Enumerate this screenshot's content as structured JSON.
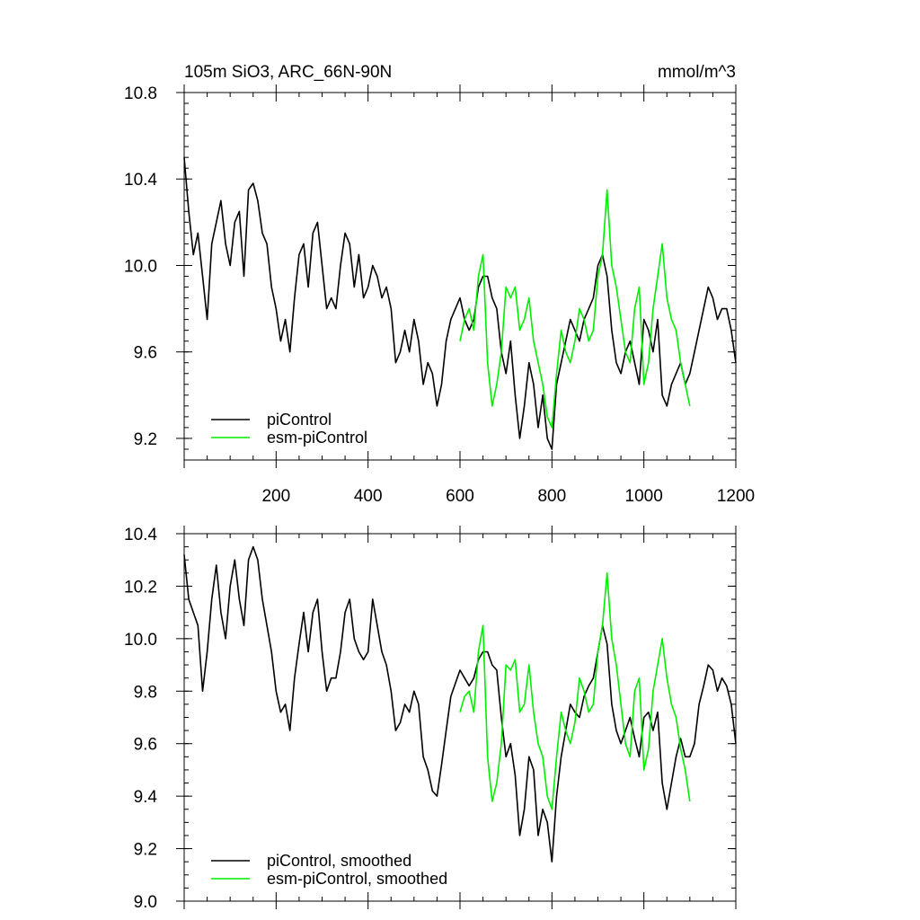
{
  "chart_data": [
    {
      "type": "line",
      "title": "105m SiO3, ARC_66N-90N",
      "units": "mmol/m^3",
      "ylim": [
        9.1,
        10.8
      ],
      "xlim": [
        0,
        1200
      ],
      "yticks": [
        "10.8",
        "10.4",
        "10.0",
        "9.6",
        "9.2"
      ],
      "xticks": [
        "200",
        "400",
        "600",
        "800",
        "1000",
        "1200"
      ],
      "legend_position": "bottom-left",
      "series": [
        {
          "name": "piControl",
          "color": "#000000",
          "x": [
            0,
            10,
            20,
            30,
            40,
            50,
            60,
            70,
            80,
            90,
            100,
            110,
            120,
            130,
            140,
            150,
            160,
            170,
            180,
            190,
            200,
            210,
            220,
            230,
            240,
            250,
            260,
            270,
            280,
            290,
            300,
            310,
            320,
            330,
            340,
            350,
            360,
            370,
            380,
            390,
            400,
            410,
            420,
            430,
            440,
            450,
            460,
            470,
            480,
            490,
            500,
            510,
            520,
            530,
            540,
            550,
            560,
            570,
            580,
            590,
            600,
            610,
            620,
            630,
            640,
            650,
            660,
            670,
            680,
            690,
            700,
            710,
            720,
            730,
            740,
            750,
            760,
            770,
            780,
            790,
            800,
            810,
            820,
            830,
            840,
            850,
            860,
            870,
            880,
            890,
            900,
            910,
            920,
            930,
            940,
            950,
            960,
            970,
            980,
            990,
            1000,
            1010,
            1020,
            1030,
            1040,
            1050,
            1060,
            1070,
            1080,
            1090,
            1100,
            1110,
            1120,
            1130,
            1140,
            1150,
            1160,
            1170,
            1180,
            1190,
            1200
          ],
          "y": [
            10.5,
            10.25,
            10.05,
            10.15,
            9.95,
            9.75,
            10.1,
            10.2,
            10.3,
            10.1,
            10.0,
            10.2,
            10.25,
            9.95,
            10.35,
            10.38,
            10.3,
            10.15,
            10.1,
            9.9,
            9.8,
            9.65,
            9.75,
            9.6,
            9.85,
            10.05,
            10.1,
            9.9,
            10.15,
            10.2,
            10.0,
            9.8,
            9.85,
            9.8,
            10.0,
            10.15,
            10.1,
            9.9,
            10.05,
            9.85,
            9.9,
            10.0,
            9.95,
            9.85,
            9.9,
            9.8,
            9.55,
            9.6,
            9.7,
            9.6,
            9.75,
            9.65,
            9.45,
            9.55,
            9.5,
            9.35,
            9.45,
            9.65,
            9.75,
            9.8,
            9.85,
            9.75,
            9.7,
            9.75,
            9.9,
            9.95,
            9.95,
            9.85,
            9.8,
            9.6,
            9.5,
            9.65,
            9.4,
            9.2,
            9.35,
            9.55,
            9.45,
            9.25,
            9.4,
            9.2,
            9.15,
            9.45,
            9.55,
            9.65,
            9.75,
            9.7,
            9.65,
            9.75,
            9.8,
            9.85,
            10.0,
            10.05,
            9.95,
            9.7,
            9.55,
            9.5,
            9.6,
            9.65,
            9.55,
            9.45,
            9.75,
            9.7,
            9.6,
            9.75,
            9.4,
            9.35,
            9.45,
            9.5,
            9.55,
            9.45,
            9.5,
            9.6,
            9.7,
            9.8,
            9.9,
            9.85,
            9.75,
            9.8,
            9.8,
            9.7,
            9.55
          ]
        },
        {
          "name": "esm-piControl",
          "color": "#00ee00",
          "x": [
            600,
            610,
            620,
            630,
            640,
            650,
            660,
            670,
            680,
            690,
            700,
            710,
            720,
            730,
            740,
            750,
            760,
            770,
            780,
            790,
            800,
            810,
            820,
            830,
            840,
            850,
            860,
            870,
            880,
            890,
            900,
            910,
            920,
            930,
            940,
            950,
            960,
            970,
            980,
            990,
            1000,
            1010,
            1020,
            1030,
            1040,
            1050,
            1060,
            1070,
            1080,
            1090,
            1100
          ],
          "y": [
            9.65,
            9.75,
            9.8,
            9.7,
            9.95,
            10.05,
            9.55,
            9.35,
            9.45,
            9.6,
            9.9,
            9.85,
            9.9,
            9.7,
            9.75,
            9.85,
            9.65,
            9.55,
            9.45,
            9.3,
            9.25,
            9.5,
            9.7,
            9.6,
            9.55,
            9.65,
            9.8,
            9.75,
            9.65,
            9.7,
            9.95,
            10.05,
            10.35,
            10.0,
            9.9,
            9.75,
            9.6,
            9.55,
            9.8,
            9.9,
            9.45,
            9.55,
            9.8,
            9.95,
            10.1,
            9.85,
            9.75,
            9.7,
            9.55,
            9.45,
            9.35
          ]
        }
      ]
    },
    {
      "type": "line",
      "ylim": [
        9.0,
        10.4
      ],
      "xlim": [
        0,
        1200
      ],
      "yticks": [
        "10.4",
        "10.2",
        "10.0",
        "9.8",
        "9.6",
        "9.4",
        "9.2",
        "9.0"
      ],
      "legend_position": "bottom-left",
      "series": [
        {
          "name": "piControl, smoothed",
          "color": "#000000",
          "x": [
            0,
            10,
            20,
            30,
            40,
            50,
            60,
            70,
            80,
            90,
            100,
            110,
            120,
            130,
            140,
            150,
            160,
            170,
            180,
            190,
            200,
            210,
            220,
            230,
            240,
            250,
            260,
            270,
            280,
            290,
            300,
            310,
            320,
            330,
            340,
            350,
            360,
            370,
            380,
            390,
            400,
            410,
            420,
            430,
            440,
            450,
            460,
            470,
            480,
            490,
            500,
            510,
            520,
            530,
            540,
            550,
            560,
            570,
            580,
            590,
            600,
            610,
            620,
            630,
            640,
            650,
            660,
            670,
            680,
            690,
            700,
            710,
            720,
            730,
            740,
            750,
            760,
            770,
            780,
            790,
            800,
            810,
            820,
            830,
            840,
            850,
            860,
            870,
            880,
            890,
            900,
            910,
            920,
            930,
            940,
            950,
            960,
            970,
            980,
            990,
            1000,
            1010,
            1020,
            1030,
            1040,
            1050,
            1060,
            1070,
            1080,
            1090,
            1100,
            1110,
            1120,
            1130,
            1140,
            1150,
            1160,
            1170,
            1180,
            1190,
            1200
          ],
          "y": [
            10.32,
            10.15,
            10.1,
            10.05,
            9.8,
            9.95,
            10.15,
            10.28,
            10.1,
            10.0,
            10.2,
            10.3,
            10.15,
            10.05,
            10.3,
            10.35,
            10.3,
            10.15,
            10.05,
            9.95,
            9.8,
            9.72,
            9.75,
            9.65,
            9.85,
            9.98,
            10.1,
            9.95,
            10.1,
            10.15,
            9.95,
            9.8,
            9.85,
            9.85,
            9.95,
            10.1,
            10.15,
            10.0,
            9.95,
            9.92,
            9.95,
            10.15,
            10.05,
            9.95,
            9.9,
            9.8,
            9.65,
            9.68,
            9.75,
            9.72,
            9.8,
            9.75,
            9.55,
            9.5,
            9.42,
            9.4,
            9.52,
            9.65,
            9.78,
            9.83,
            9.88,
            9.85,
            9.82,
            9.85,
            9.92,
            9.95,
            9.95,
            9.9,
            9.88,
            9.7,
            9.55,
            9.6,
            9.48,
            9.25,
            9.35,
            9.55,
            9.5,
            9.25,
            9.35,
            9.3,
            9.15,
            9.4,
            9.55,
            9.65,
            9.75,
            9.72,
            9.7,
            9.78,
            9.82,
            9.85,
            9.95,
            10.05,
            9.98,
            9.75,
            9.65,
            9.6,
            9.65,
            9.7,
            9.62,
            9.55,
            9.7,
            9.72,
            9.65,
            9.72,
            9.45,
            9.35,
            9.45,
            9.55,
            9.62,
            9.55,
            9.55,
            9.6,
            9.75,
            9.82,
            9.9,
            9.88,
            9.8,
            9.85,
            9.82,
            9.75,
            9.6
          ]
        },
        {
          "name": "esm-piControl, smoothed",
          "color": "#00ee00",
          "x": [
            600,
            610,
            620,
            630,
            640,
            650,
            660,
            670,
            680,
            690,
            700,
            710,
            720,
            730,
            740,
            750,
            760,
            770,
            780,
            790,
            800,
            810,
            820,
            830,
            840,
            850,
            860,
            870,
            880,
            890,
            900,
            910,
            920,
            930,
            940,
            950,
            960,
            970,
            980,
            990,
            1000,
            1010,
            1020,
            1030,
            1040,
            1050,
            1060,
            1070,
            1080,
            1090,
            1100
          ],
          "y": [
            9.72,
            9.78,
            9.8,
            9.72,
            9.95,
            10.05,
            9.55,
            9.38,
            9.45,
            9.6,
            9.9,
            9.88,
            9.92,
            9.72,
            9.75,
            9.9,
            9.72,
            9.6,
            9.55,
            9.4,
            9.35,
            9.55,
            9.72,
            9.65,
            9.6,
            9.68,
            9.85,
            9.8,
            9.72,
            9.75,
            9.95,
            10.05,
            10.25,
            10.0,
            9.9,
            9.75,
            9.6,
            9.55,
            9.8,
            9.85,
            9.5,
            9.58,
            9.8,
            9.9,
            10.0,
            9.85,
            9.75,
            9.7,
            9.58,
            9.5,
            9.38
          ]
        }
      ]
    }
  ]
}
